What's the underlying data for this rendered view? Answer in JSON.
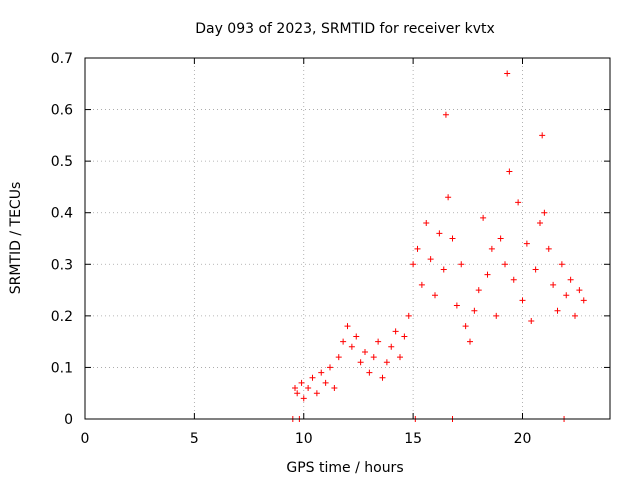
{
  "chart_data": {
    "type": "scatter",
    "title": "Day 093 of 2023, SRMTID for receiver kvtx",
    "xlabel": "GPS time / hours",
    "ylabel": "SRMTID / TECUs",
    "xlim": [
      0,
      24
    ],
    "ylim": [
      0,
      0.7
    ],
    "xticks": [
      0,
      5,
      10,
      15,
      20
    ],
    "xtick_labels": [
      "0",
      "5",
      "10",
      "15",
      "20"
    ],
    "yticks": [
      0,
      0.1,
      0.2,
      0.3,
      0.4,
      0.5,
      0.6,
      0.7
    ],
    "ytick_labels": [
      "0",
      "0.1",
      "0.2",
      "0.3",
      "0.4",
      "0.5",
      "0.6",
      "0.7"
    ],
    "grid": true,
    "marker": "+",
    "series": [
      {
        "name": "SRMTID",
        "color": "#ff0000",
        "x": [
          9.5,
          9.8,
          15.1,
          16.8,
          21.9,
          9.6,
          9.7,
          9.9,
          10.0,
          10.2,
          10.4,
          10.6,
          10.8,
          11.0,
          11.2,
          11.4,
          11.6,
          11.8,
          12.0,
          12.2,
          12.4,
          12.6,
          12.8,
          13.0,
          13.2,
          13.4,
          13.6,
          13.8,
          14.0,
          14.2,
          14.4,
          14.6,
          14.8,
          15.0,
          15.2,
          15.4,
          15.6,
          15.8,
          16.0,
          16.2,
          16.4,
          16.5,
          16.6,
          16.8,
          17.0,
          17.2,
          17.4,
          17.6,
          17.8,
          18.0,
          18.2,
          18.4,
          18.6,
          18.8,
          19.0,
          19.2,
          19.3,
          19.4,
          19.6,
          19.8,
          20.0,
          20.2,
          20.4,
          20.6,
          20.8,
          20.9,
          21.0,
          21.2,
          21.4,
          21.6,
          21.8,
          22.0,
          22.2,
          22.4,
          22.6,
          22.8
        ],
        "y": [
          0,
          0,
          0,
          0,
          0,
          0.06,
          0.05,
          0.07,
          0.04,
          0.06,
          0.08,
          0.05,
          0.09,
          0.07,
          0.1,
          0.06,
          0.12,
          0.15,
          0.18,
          0.14,
          0.16,
          0.11,
          0.13,
          0.09,
          0.12,
          0.15,
          0.08,
          0.11,
          0.14,
          0.17,
          0.12,
          0.16,
          0.2,
          0.3,
          0.33,
          0.26,
          0.38,
          0.31,
          0.24,
          0.36,
          0.29,
          0.59,
          0.43,
          0.35,
          0.22,
          0.3,
          0.18,
          0.15,
          0.21,
          0.25,
          0.39,
          0.28,
          0.33,
          0.2,
          0.35,
          0.3,
          0.67,
          0.48,
          0.27,
          0.42,
          0.23,
          0.34,
          0.19,
          0.29,
          0.38,
          0.55,
          0.4,
          0.33,
          0.26,
          0.21,
          0.3,
          0.24,
          0.27,
          0.2,
          0.25,
          0.23
        ]
      }
    ]
  }
}
